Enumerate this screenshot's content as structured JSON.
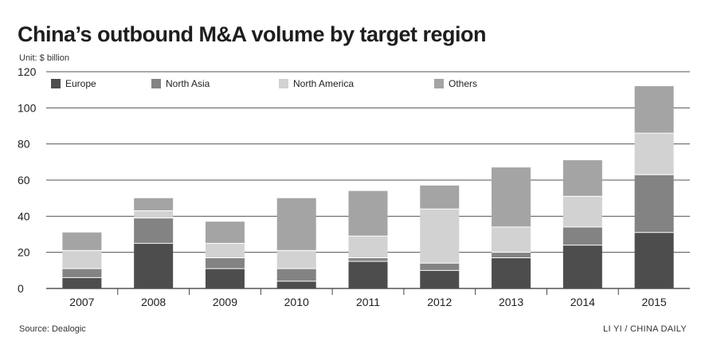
{
  "chart_data": {
    "type": "bar",
    "stacked": true,
    "title": "China’s outbound M&A volume by target region",
    "unit_note": "Unit: $ billion",
    "categories": [
      "2007",
      "2008",
      "2009",
      "2010",
      "2011",
      "2012",
      "2013",
      "2014",
      "2015"
    ],
    "series": [
      {
        "name": "Europe",
        "color": "#4d4d4d",
        "values": [
          6,
          25,
          11,
          4,
          15,
          10,
          17,
          24,
          31
        ]
      },
      {
        "name": "North Asia",
        "color": "#838383",
        "values": [
          5,
          14,
          6,
          7,
          2,
          4,
          3,
          10,
          32
        ]
      },
      {
        "name": "North America",
        "color": "#d2d2d2",
        "values": [
          10,
          4,
          8,
          10,
          12,
          30,
          14,
          17,
          23
        ]
      },
      {
        "name": "Others",
        "color": "#a4a4a4",
        "values": [
          10,
          7,
          12,
          29,
          25,
          13,
          33,
          20,
          26
        ]
      }
    ],
    "yticks": [
      0,
      20,
      40,
      60,
      80,
      100,
      120
    ],
    "ylim": [
      0,
      120
    ],
    "grid": true,
    "legend_position": "top-left"
  },
  "footer": {
    "source": "Source: Dealogic",
    "credit": "LI YI / CHINA DAILY"
  }
}
